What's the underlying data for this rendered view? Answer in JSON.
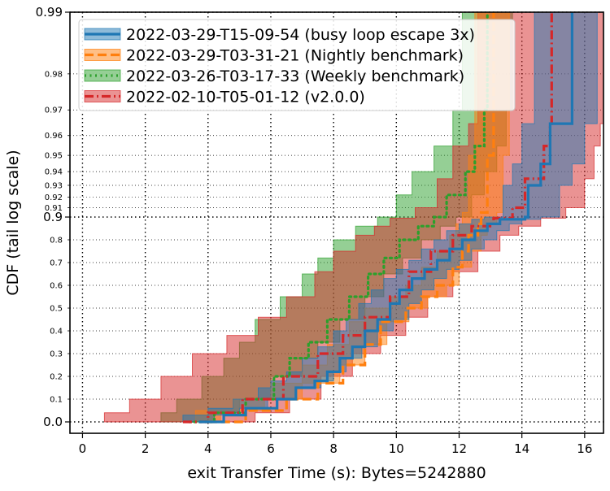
{
  "chart_data": {
    "type": "line",
    "xlabel": "exit Transfer Time (s): Bytes=5242880",
    "ylabel": "CDF (tail log scale)",
    "xlim": [
      -0.4,
      16.6
    ],
    "x_ticks": [
      "0",
      "2",
      "4",
      "6",
      "8",
      "10",
      "12",
      "14",
      "16"
    ],
    "y_scale": "tail-log",
    "y_ticks_major": [
      {
        "value": 0.0,
        "label": "0.0"
      },
      {
        "value": 0.9,
        "label": "0.9"
      },
      {
        "value": 0.99,
        "label": "0.99"
      }
    ],
    "y_ticks_minor": [
      {
        "value": 0.1,
        "label": "0.1"
      },
      {
        "value": 0.2,
        "label": "0.2"
      },
      {
        "value": 0.3,
        "label": "0.3"
      },
      {
        "value": 0.4,
        "label": "0.4"
      },
      {
        "value": 0.5,
        "label": "0.5"
      },
      {
        "value": 0.6,
        "label": "0.6"
      },
      {
        "value": 0.7,
        "label": "0.7"
      },
      {
        "value": 0.8,
        "label": "0.8"
      },
      {
        "value": 0.91,
        "label": "0.91"
      },
      {
        "value": 0.92,
        "label": "0.92"
      },
      {
        "value": 0.93,
        "label": "0.93"
      },
      {
        "value": 0.94,
        "label": "0.94"
      },
      {
        "value": 0.95,
        "label": "0.95"
      },
      {
        "value": 0.96,
        "label": "0.96"
      },
      {
        "value": 0.97,
        "label": "0.97"
      },
      {
        "value": 0.98,
        "label": "0.98"
      }
    ],
    "grid": true,
    "legend_position": "top-left",
    "series": [
      {
        "name": "2022-03-29-T15-09-54 (busy loop escape 3x)",
        "color": "#1f77b4",
        "dash": "solid",
        "points": [
          [
            3.7,
            0.0
          ],
          [
            4.5,
            0.03
          ],
          [
            5.2,
            0.06
          ],
          [
            6.2,
            0.1
          ],
          [
            6.8,
            0.15
          ],
          [
            7.4,
            0.18
          ],
          [
            7.8,
            0.22
          ],
          [
            8.2,
            0.28
          ],
          [
            8.6,
            0.33
          ],
          [
            9.0,
            0.4
          ],
          [
            9.4,
            0.45
          ],
          [
            9.8,
            0.52
          ],
          [
            10.1,
            0.58
          ],
          [
            10.5,
            0.63
          ],
          [
            10.9,
            0.67
          ],
          [
            11.3,
            0.71
          ],
          [
            11.7,
            0.76
          ],
          [
            12.1,
            0.8
          ],
          [
            12.5,
            0.84
          ],
          [
            12.9,
            0.87
          ],
          [
            13.3,
            0.89
          ],
          [
            14.1,
            0.9
          ],
          [
            14.2,
            0.93
          ],
          [
            14.6,
            0.945
          ],
          [
            14.9,
            0.965
          ],
          [
            15.6,
            0.99
          ]
        ],
        "band": [
          [
            3.2,
            0.0,
            4.2
          ],
          [
            4.0,
            0.03,
            5.0
          ],
          [
            4.8,
            0.06,
            5.9
          ],
          [
            5.6,
            0.1,
            6.8
          ],
          [
            6.0,
            0.15,
            7.6
          ],
          [
            6.5,
            0.18,
            8.0
          ],
          [
            7.0,
            0.22,
            8.4
          ],
          [
            7.5,
            0.28,
            8.9
          ],
          [
            8.0,
            0.33,
            9.4
          ],
          [
            8.4,
            0.4,
            9.9
          ],
          [
            8.8,
            0.45,
            10.4
          ],
          [
            9.2,
            0.52,
            10.8
          ],
          [
            9.6,
            0.58,
            11.2
          ],
          [
            10.0,
            0.63,
            11.6
          ],
          [
            10.4,
            0.67,
            12.0
          ],
          [
            10.8,
            0.71,
            12.4
          ],
          [
            11.2,
            0.76,
            12.8
          ],
          [
            11.6,
            0.8,
            13.2
          ],
          [
            12.0,
            0.84,
            13.6
          ],
          [
            12.4,
            0.87,
            14.0
          ],
          [
            12.8,
            0.89,
            14.6
          ],
          [
            13.4,
            0.9,
            15.2
          ],
          [
            13.7,
            0.93,
            15.6
          ],
          [
            14.0,
            0.945,
            16.0
          ],
          [
            14.4,
            0.965,
            16.4
          ],
          [
            15.0,
            0.99,
            16.6
          ]
        ]
      },
      {
        "name": "2022-03-29-T03-31-21 (Nightly benchmark)",
        "color": "#ff7f0e",
        "dash": "dashed",
        "points": [
          [
            4.0,
            0.0
          ],
          [
            5.2,
            0.05
          ],
          [
            6.5,
            0.1
          ],
          [
            7.5,
            0.17
          ],
          [
            8.3,
            0.25
          ],
          [
            9.0,
            0.34
          ],
          [
            9.5,
            0.44
          ],
          [
            10.3,
            0.5
          ],
          [
            10.8,
            0.55
          ],
          [
            11.3,
            0.6
          ],
          [
            11.8,
            0.68
          ],
          [
            12.1,
            0.75
          ],
          [
            12.3,
            0.82
          ],
          [
            12.6,
            0.87
          ],
          [
            12.7,
            0.905
          ],
          [
            12.9,
            0.95
          ],
          [
            13.1,
            0.99
          ]
        ],
        "band": [
          [
            3.6,
            0.0,
            4.4
          ],
          [
            4.8,
            0.05,
            5.8
          ],
          [
            6.0,
            0.1,
            7.0
          ],
          [
            7.0,
            0.17,
            8.2
          ],
          [
            7.8,
            0.25,
            9.0
          ],
          [
            8.5,
            0.34,
            9.7
          ],
          [
            9.0,
            0.44,
            10.4
          ],
          [
            9.8,
            0.5,
            11.0
          ],
          [
            10.3,
            0.55,
            11.6
          ],
          [
            10.8,
            0.6,
            12.0
          ],
          [
            11.3,
            0.68,
            12.4
          ],
          [
            11.7,
            0.75,
            12.7
          ],
          [
            11.9,
            0.82,
            12.9
          ],
          [
            12.1,
            0.87,
            13.2
          ],
          [
            12.3,
            0.905,
            13.4
          ],
          [
            12.5,
            0.95,
            13.6
          ],
          [
            12.7,
            0.99,
            13.8
          ]
        ]
      },
      {
        "name": "2022-03-26-T03-17-33 (Weekly benchmark)",
        "color": "#2ca02c",
        "dash": "dotted",
        "points": [
          [
            3.4,
            0.0
          ],
          [
            4.2,
            0.04
          ],
          [
            5.2,
            0.1
          ],
          [
            6.1,
            0.2
          ],
          [
            6.6,
            0.28
          ],
          [
            7.2,
            0.35
          ],
          [
            7.8,
            0.45
          ],
          [
            8.5,
            0.55
          ],
          [
            9.1,
            0.65
          ],
          [
            9.6,
            0.72
          ],
          [
            10.1,
            0.8
          ],
          [
            10.7,
            0.86
          ],
          [
            11.2,
            0.9
          ],
          [
            11.6,
            0.922
          ],
          [
            12.2,
            0.94
          ],
          [
            12.5,
            0.955
          ],
          [
            12.8,
            0.97
          ],
          [
            12.9,
            0.99
          ]
        ],
        "band": [
          [
            2.5,
            0.0,
            4.2
          ],
          [
            3.0,
            0.04,
            5.0
          ],
          [
            3.8,
            0.1,
            6.0
          ],
          [
            4.5,
            0.2,
            7.0
          ],
          [
            5.0,
            0.28,
            7.5
          ],
          [
            5.5,
            0.35,
            8.2
          ],
          [
            6.3,
            0.45,
            9.0
          ],
          [
            7.0,
            0.55,
            9.6
          ],
          [
            7.5,
            0.65,
            10.2
          ],
          [
            8.0,
            0.72,
            10.8
          ],
          [
            8.7,
            0.8,
            11.4
          ],
          [
            9.4,
            0.86,
            11.9
          ],
          [
            10.0,
            0.9,
            12.4
          ],
          [
            10.5,
            0.922,
            12.8
          ],
          [
            11.2,
            0.94,
            13.2
          ],
          [
            11.8,
            0.955,
            13.5
          ],
          [
            12.1,
            0.97,
            13.7
          ],
          [
            12.4,
            0.99,
            13.8
          ]
        ]
      },
      {
        "name": "2022-02-10-T05-01-12 (v2.0.0)",
        "color": "#d62728",
        "dash": "dashdot",
        "points": [
          [
            3.2,
            0.0
          ],
          [
            4.0,
            0.04
          ],
          [
            5.1,
            0.1
          ],
          [
            6.4,
            0.2
          ],
          [
            7.5,
            0.3
          ],
          [
            8.3,
            0.38
          ],
          [
            9.0,
            0.46
          ],
          [
            9.8,
            0.55
          ],
          [
            10.4,
            0.66
          ],
          [
            11.1,
            0.75
          ],
          [
            11.8,
            0.82
          ],
          [
            12.4,
            0.86
          ],
          [
            13.1,
            0.895
          ],
          [
            13.7,
            0.91
          ],
          [
            14.1,
            0.935
          ],
          [
            14.7,
            0.955
          ],
          [
            14.9,
            0.965
          ],
          [
            14.95,
            0.99
          ]
        ],
        "band": [
          [
            0.7,
            0.0,
            5.5
          ],
          [
            1.5,
            0.04,
            6.6
          ],
          [
            2.5,
            0.1,
            7.6
          ],
          [
            3.5,
            0.2,
            8.6
          ],
          [
            4.6,
            0.3,
            9.5
          ],
          [
            5.6,
            0.38,
            10.3
          ],
          [
            6.5,
            0.46,
            11.0
          ],
          [
            7.4,
            0.55,
            11.8
          ],
          [
            8.0,
            0.66,
            12.6
          ],
          [
            8.7,
            0.75,
            13.3
          ],
          [
            9.3,
            0.82,
            13.9
          ],
          [
            9.8,
            0.86,
            14.6
          ],
          [
            10.6,
            0.895,
            15.4
          ],
          [
            11.3,
            0.91,
            16.0
          ],
          [
            11.8,
            0.935,
            16.3
          ],
          [
            12.3,
            0.955,
            16.5
          ],
          [
            12.6,
            0.965,
            16.6
          ],
          [
            12.7,
            0.99,
            16.6
          ]
        ]
      }
    ]
  }
}
